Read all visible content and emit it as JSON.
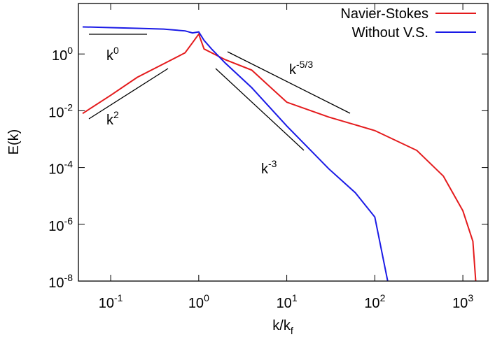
{
  "chart_data": {
    "type": "line",
    "x_label": "k/k_f",
    "y_label": "E(k)",
    "log_x": true,
    "log_y": true,
    "grid": false,
    "legend": "top-right",
    "xlim": [
      0.043,
      1930
    ],
    "ylim": [
      1e-08,
      60
    ],
    "xticks": [
      {
        "value": 0.1,
        "label": "10^-1"
      },
      {
        "value": 1,
        "label": "10^0"
      },
      {
        "value": 10,
        "label": "10^1"
      },
      {
        "value": 100,
        "label": "10^2"
      },
      {
        "value": 1000,
        "label": "10^3"
      }
    ],
    "yticks": [
      {
        "value": 1e-08,
        "label": "10^-8"
      },
      {
        "value": 1e-06,
        "label": "10^-6"
      },
      {
        "value": 0.0001,
        "label": "10^-4"
      },
      {
        "value": 0.01,
        "label": "10^-2"
      },
      {
        "value": 1,
        "label": "10^0"
      }
    ],
    "annotations": [
      "k^0",
      "k^2",
      "k^-5/3",
      "k^-3"
    ],
    "series": [
      {
        "name": "Navier-Stokes",
        "color": "#e41a1c",
        "x": [
          0.048,
          0.1,
          0.2,
          0.4,
          0.7,
          0.85,
          1.0,
          1.15,
          1.4,
          2,
          4,
          10,
          30,
          100,
          300,
          600,
          1000,
          1300,
          1400
        ],
        "values": [
          0.008,
          0.035,
          0.15,
          0.45,
          1.1,
          2.5,
          5,
          1.5,
          1.1,
          0.63,
          0.27,
          0.02,
          0.006,
          0.002,
          0.0004,
          5e-05,
          3e-06,
          2.5e-07,
          1e-08
        ]
      },
      {
        "name": "Without V.S.",
        "color": "#1a1ae6",
        "x": [
          0.048,
          0.1,
          0.2,
          0.4,
          0.7,
          0.85,
          1.0,
          1.15,
          1.4,
          2,
          4,
          10,
          30,
          60,
          100,
          140
        ],
        "values": [
          9,
          8.5,
          8,
          7.5,
          6.5,
          5.5,
          6,
          3,
          1.5,
          0.48,
          0.065,
          0.0029,
          9e-05,
          1.3e-05,
          1.8e-06,
          1e-08
        ]
      }
    ]
  }
}
